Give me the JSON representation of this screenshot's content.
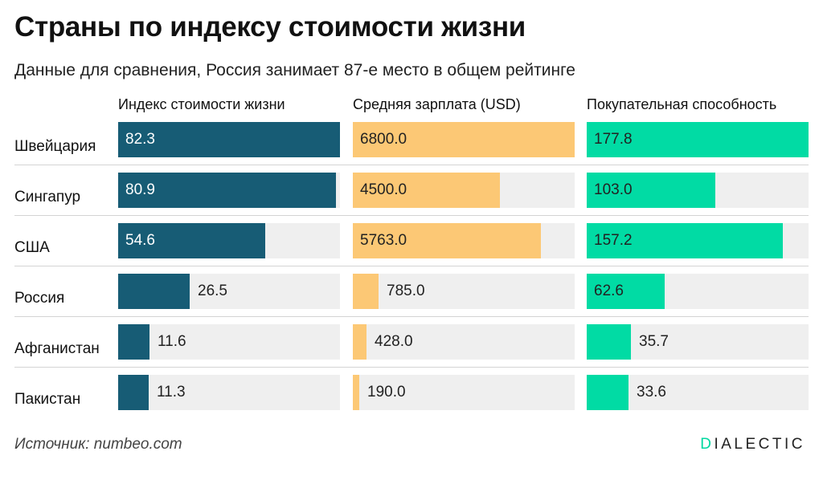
{
  "header": {
    "title": "Страны по индексу стоимости жизни",
    "subtitle": "Данные для сравнения, Россия занимает 87-е место в общем рейтинге"
  },
  "footer": {
    "source": "Источник: numbeo.com",
    "logo_accent": "D",
    "logo_rest": "IALECTIC"
  },
  "colors": {
    "cost_index": "#175c75",
    "salary": "#fcc875",
    "purchasing_power": "#01dba4",
    "track": "#efefef"
  },
  "chart_data": {
    "type": "bar",
    "orientation": "horizontal",
    "title": "Страны по индексу стоимости жизни",
    "subtitle": "Данные для сравнения, Россия занимает 87-е место в общем рейтинге",
    "categories": [
      "Швейцария",
      "Сингапур",
      "США",
      "Россия",
      "Афганистан",
      "Пакистан"
    ],
    "series": [
      {
        "name": "Индекс стоимости жизни",
        "key": "cost_index",
        "max": 82.3,
        "values": [
          82.3,
          80.9,
          54.6,
          26.5,
          11.6,
          11.3
        ]
      },
      {
        "name": "Средняя зарплата (USD)",
        "key": "salary",
        "max": 6800.0,
        "values": [
          6800.0,
          4500.0,
          5763.0,
          785.0,
          428.0,
          190.0
        ]
      },
      {
        "name": "Покупательная способность",
        "key": "purchasing_power",
        "max": 177.8,
        "values": [
          177.8,
          103.0,
          157.2,
          62.6,
          35.7,
          33.6
        ]
      }
    ],
    "value_format": "one_decimal",
    "source": "Источник: numbeo.com"
  }
}
